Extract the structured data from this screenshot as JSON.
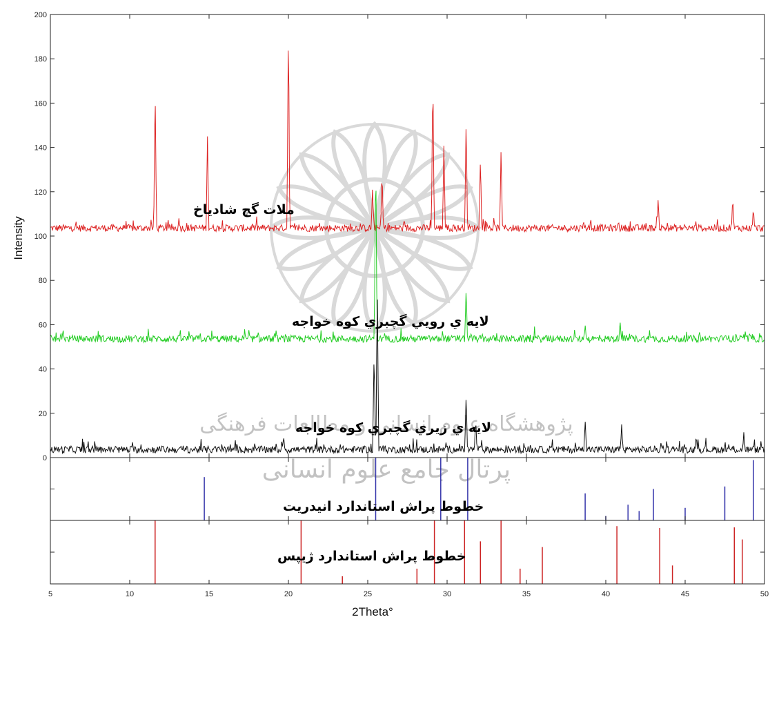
{
  "chart_data": {
    "type": "line",
    "xlabel": "2Theta°",
    "ylabel": "Intensity",
    "xlim": [
      5,
      50
    ],
    "ylim": [
      0,
      200
    ],
    "x_ticks": [
      5,
      10,
      15,
      20,
      25,
      30,
      35,
      40,
      45,
      50
    ],
    "y_ticks": [
      0,
      20,
      40,
      60,
      80,
      100,
      120,
      140,
      160,
      180,
      200
    ],
    "grid": false,
    "colors": {
      "red_series": "#dd2222",
      "green_series": "#22cc22",
      "black_series": "#111111",
      "anhydrite_lines": "#3333aa",
      "gypsum_lines": "#cc2222"
    },
    "series": [
      {
        "key": "shadyakh",
        "color": "#dd2222",
        "baseline": 102,
        "peaks": [
          [
            11.6,
            170
          ],
          [
            14.9,
            145
          ],
          [
            13.1,
            108
          ],
          [
            20.0,
            200
          ],
          [
            25.3,
            122
          ],
          [
            25.9,
            130
          ],
          [
            29.1,
            176
          ],
          [
            29.8,
            143
          ],
          [
            31.2,
            154
          ],
          [
            32.1,
            136
          ],
          [
            33.4,
            140
          ],
          [
            38.6,
            107
          ],
          [
            40.8,
            107
          ],
          [
            43.3,
            117
          ],
          [
            48.0,
            118
          ],
          [
            49.3,
            113
          ]
        ]
      },
      {
        "key": "upper_layer",
        "color": "#22cc22",
        "baseline": 52,
        "peaks": [
          [
            5.8,
            58
          ],
          [
            25.5,
            140
          ],
          [
            31.2,
            77
          ],
          [
            38.7,
            60
          ],
          [
            40.9,
            62
          ],
          [
            48.8,
            56
          ]
        ]
      },
      {
        "key": "lower_layer",
        "color": "#111111",
        "baseline": 2,
        "peaks": [
          [
            25.4,
            50
          ],
          [
            25.6,
            80
          ],
          [
            31.2,
            29
          ],
          [
            31.8,
            18
          ],
          [
            38.7,
            17
          ],
          [
            41.0,
            15
          ],
          [
            45.7,
            10
          ],
          [
            48.7,
            12
          ],
          [
            19.7,
            10
          ]
        ]
      }
    ],
    "standards": [
      {
        "key": "anhydrite",
        "color": "#3333aa",
        "lines": [
          [
            14.7,
            0.69
          ],
          [
            25.5,
            1.0
          ],
          [
            29.6,
            1.0
          ],
          [
            31.3,
            1.0
          ],
          [
            38.7,
            0.43
          ],
          [
            40.0,
            0.07
          ],
          [
            41.4,
            0.25
          ],
          [
            42.1,
            0.15
          ],
          [
            43.0,
            0.5
          ],
          [
            45.0,
            0.2
          ],
          [
            47.5,
            0.54
          ],
          [
            49.3,
            0.96
          ]
        ]
      },
      {
        "key": "gypsum",
        "color": "#cc2222",
        "lines": [
          [
            11.6,
            1.0
          ],
          [
            20.8,
            1.0
          ],
          [
            23.4,
            0.12
          ],
          [
            28.1,
            0.24
          ],
          [
            29.2,
            1.0
          ],
          [
            31.1,
            1.0
          ],
          [
            32.1,
            0.67
          ],
          [
            33.4,
            1.0
          ],
          [
            34.6,
            0.24
          ],
          [
            36.0,
            0.58
          ],
          [
            40.7,
            0.91
          ],
          [
            43.4,
            0.88
          ],
          [
            44.2,
            0.29
          ],
          [
            48.1,
            0.89
          ],
          [
            48.6,
            0.7
          ]
        ]
      }
    ],
    "annotations": [
      "ملات گچ شادیاخ",
      "لایه ي رويي گچبري کوه خواجه",
      "لایه ي زيري گچبري کوه خواجه",
      "خطوط پراش استاندارد انيدريت",
      "خطوط پراش استاندارد ژيپس"
    ],
    "watermark_text": [
      "پژوهشگاه علوم انسانی و مطالعات فرهنگی",
      "پرتال جامع علوم انسانی"
    ]
  }
}
